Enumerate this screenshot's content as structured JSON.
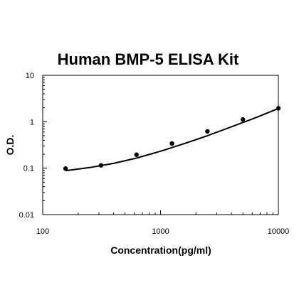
{
  "chart_data": {
    "type": "scatter",
    "title": "Human BMP-5 ELISA Kit",
    "xlabel": "Concentration(pg/ml)",
    "ylabel": "O.D.",
    "xscale": "log",
    "yscale": "log",
    "xlim": [
      100,
      10000
    ],
    "ylim": [
      0.01,
      10
    ],
    "xticks": [
      100,
      1000,
      10000
    ],
    "xtick_labels": [
      "100",
      "1000",
      "10000"
    ],
    "yticks": [
      0.01,
      0.1,
      1,
      10
    ],
    "ytick_labels": [
      "0.01",
      "0.1",
      "1",
      "10"
    ],
    "grid": false,
    "legend": "none",
    "series": [
      {
        "points": [
          {
            "x": 156.25,
            "y": 0.098
          },
          {
            "x": 312.5,
            "y": 0.115
          },
          {
            "x": 625,
            "y": 0.195
          },
          {
            "x": 1250,
            "y": 0.34
          },
          {
            "x": 2500,
            "y": 0.62
          },
          {
            "x": 5000,
            "y": 1.12
          },
          {
            "x": 10000,
            "y": 1.95
          }
        ],
        "color": "#000000"
      }
    ],
    "fit_curve": {
      "x": [
        156.25,
        250,
        400,
        625,
        1000,
        1600,
        2500,
        4000,
        6300,
        10000
      ],
      "y": [
        0.088,
        0.103,
        0.127,
        0.165,
        0.232,
        0.34,
        0.5,
        0.78,
        1.2,
        1.93
      ],
      "color": "#000000"
    }
  }
}
